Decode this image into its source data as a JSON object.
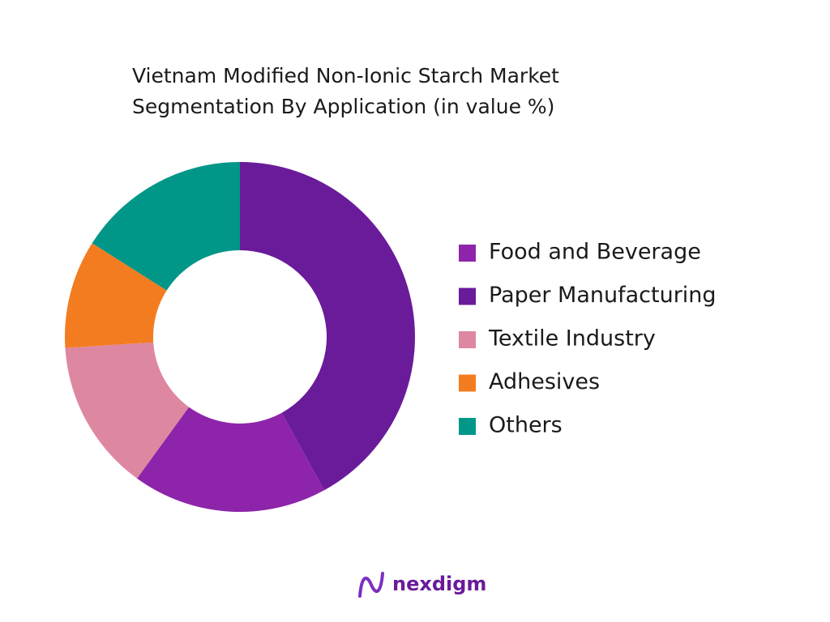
{
  "chart_data": {
    "type": "donut",
    "title": [
      "Vietnam Modified Non-Ionic Starch Market",
      "Segmentation By Application (in value %)"
    ],
    "categories": [
      "Food and Beverage",
      "Paper Manufacturing",
      "Textile Industry",
      "Adhesives",
      "Others"
    ],
    "values": [
      18,
      42,
      14,
      10,
      16
    ],
    "colors": [
      "#8e24aa",
      "#6a1b9a",
      "#de87a0",
      "#f47c20",
      "#009688"
    ],
    "legend": "right"
  },
  "footer": {
    "brand": "nexdigm"
  }
}
